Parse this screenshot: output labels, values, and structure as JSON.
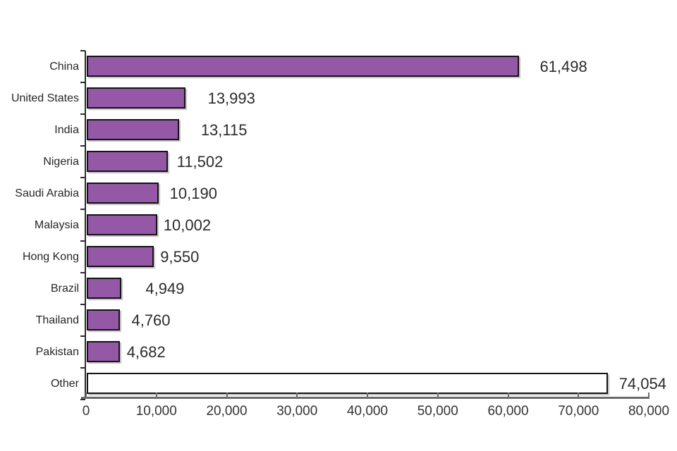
{
  "chart_data": {
    "type": "bar",
    "orientation": "horizontal",
    "title": "",
    "xlabel": "",
    "ylabel": "",
    "grid": false,
    "legend": false,
    "categories": [
      "China",
      "United States",
      "India",
      "Nigeria",
      "Saudi Arabia",
      "Malaysia",
      "Hong Kong",
      "Brazil",
      "Thailand",
      "Pakistan",
      "Other"
    ],
    "values": [
      61498,
      13993,
      13115,
      11502,
      10190,
      10002,
      9550,
      4949,
      4760,
      4682,
      74054
    ],
    "value_labels": [
      "61,498",
      "13,993",
      "13,115",
      "11,502",
      "10,190",
      "10,002",
      "9,550",
      "4,949",
      "4,760",
      "4,682",
      "74,054"
    ],
    "bar_fills": [
      "#9458A6",
      "#9458A6",
      "#9458A6",
      "#9458A6",
      "#9458A6",
      "#9458A6",
      "#9458A6",
      "#9458A6",
      "#9458A6",
      "#9458A6",
      "#FFFFFF"
    ],
    "bar_border_color": "#141414",
    "axis_color": "#6b6b6b",
    "text_color": "#262626",
    "x_axis": {
      "min": 0,
      "max": 80000,
      "tick_interval": 10000,
      "tick_labels": [
        "0",
        "10,000",
        "20,000",
        "30,000",
        "40,000",
        "50,000",
        "60,000",
        "70,000",
        "80,000"
      ]
    }
  }
}
